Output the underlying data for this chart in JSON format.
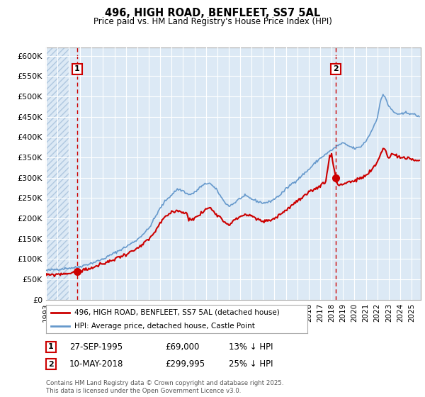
{
  "title": "496, HIGH ROAD, BENFLEET, SS7 5AL",
  "subtitle": "Price paid vs. HM Land Registry's House Price Index (HPI)",
  "ylabel_ticks": [
    "£0",
    "£50K",
    "£100K",
    "£150K",
    "£200K",
    "£250K",
    "£300K",
    "£350K",
    "£400K",
    "£450K",
    "£500K",
    "£550K",
    "£600K"
  ],
  "ytick_values": [
    0,
    50000,
    100000,
    150000,
    200000,
    250000,
    300000,
    350000,
    400000,
    450000,
    500000,
    550000,
    600000
  ],
  "ylim": [
    0,
    620000
  ],
  "xlim_start": 1993.0,
  "xlim_end": 2025.8,
  "sale1_x": 1995.74,
  "sale1_y": 69000,
  "sale1_label": "1",
  "sale1_date": "27-SEP-1995",
  "sale1_price": "£69,000",
  "sale1_note": "13% ↓ HPI",
  "sale2_x": 2018.36,
  "sale2_y": 299995,
  "sale2_label": "2",
  "sale2_date": "10-MAY-2018",
  "sale2_price": "£299,995",
  "sale2_note": "25% ↓ HPI",
  "red_line_color": "#cc0000",
  "hpi_line_color": "#6699cc",
  "background_color": "#ffffff",
  "plot_bg_color": "#dce9f5",
  "grid_color": "#ffffff",
  "dashed_line_color": "#cc0000",
  "legend_label1": "496, HIGH ROAD, BENFLEET, SS7 5AL (detached house)",
  "legend_label2": "HPI: Average price, detached house, Castle Point",
  "footnote": "Contains HM Land Registry data © Crown copyright and database right 2025.\nThis data is licensed under the Open Government Licence v3.0."
}
